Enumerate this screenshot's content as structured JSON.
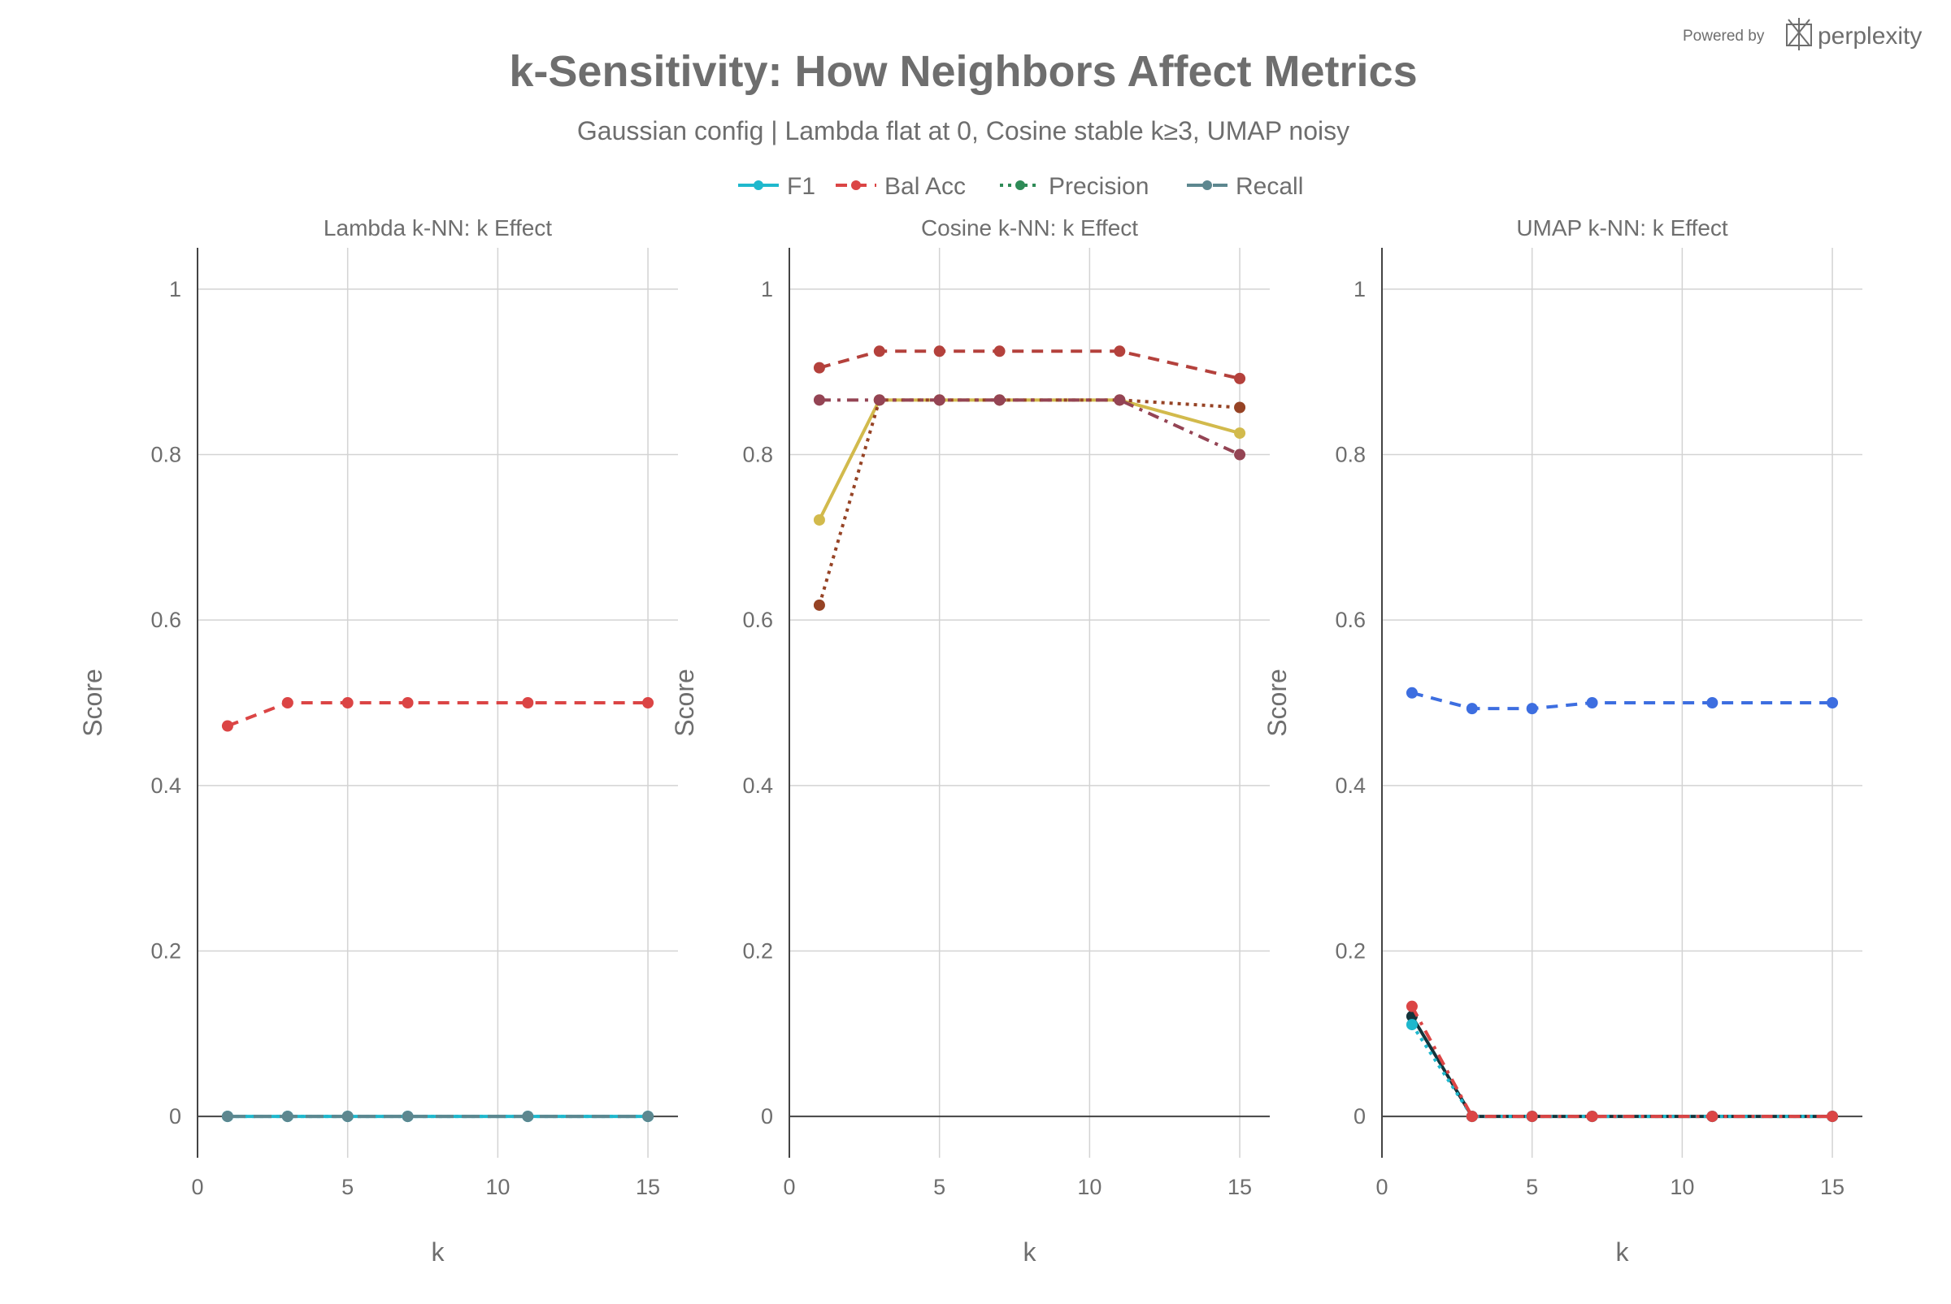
{
  "chart_data": {
    "type": "line",
    "title": "k-Sensitivity: How Neighbors Affect Metrics",
    "subtitle": "Gaussian config | Lambda flat at 0, Cosine stable k≥3, UMAP noisy",
    "watermark": "Powered by perplexity",
    "legend": {
      "placement": "top-center",
      "entries": [
        {
          "name": "F1",
          "color": "#1fb8cd",
          "dash": "solid"
        },
        {
          "name": "Bal Acc",
          "color": "#db4545",
          "dash": "dash"
        },
        {
          "name": "Precision",
          "color": "#2e8b57",
          "dash": "dot"
        },
        {
          "name": "Recall",
          "color": "#5d878f",
          "dash": "longdash"
        }
      ]
    },
    "x": [
      1,
      3,
      5,
      7,
      11,
      15
    ],
    "panels": [
      {
        "title": "Lambda k-NN: k Effect",
        "xlabel": "k",
        "ylabel": "Score",
        "xlim": [
          0,
          16
        ],
        "ylim": [
          -0.05,
          1.05
        ],
        "xticks": [
          0,
          5,
          10,
          15
        ],
        "yticks": [
          0,
          0.2,
          0.4,
          0.6,
          0.8,
          1
        ],
        "grid": true,
        "series": [
          {
            "name": "F1",
            "color": "#1fb8cd",
            "dash": "solid",
            "values": [
              0,
              0,
              0,
              0,
              0,
              0
            ]
          },
          {
            "name": "Bal Acc",
            "color": "#db4545",
            "dash": "dash",
            "values": [
              0.472,
              0.5,
              0.5,
              0.5,
              0.5,
              0.5
            ]
          },
          {
            "name": "Precision",
            "color": "#1fb8cd",
            "dash": "dot",
            "values": [
              0,
              0,
              0,
              0,
              0,
              0
            ]
          },
          {
            "name": "Recall",
            "color": "#5d878f",
            "dash": "longdash",
            "values": [
              0,
              0,
              0,
              0,
              0,
              0
            ]
          }
        ]
      },
      {
        "title": "Cosine k-NN: k Effect",
        "xlabel": "k",
        "ylabel": "Score",
        "xlim": [
          0,
          16
        ],
        "ylim": [
          -0.05,
          1.05
        ],
        "xticks": [
          0,
          5,
          10,
          15
        ],
        "yticks": [
          0,
          0.2,
          0.4,
          0.6,
          0.8,
          1
        ],
        "grid": true,
        "series": [
          {
            "name": "F1",
            "color": "#d2ba4c",
            "dash": "solid",
            "values": [
              0.721,
              0.866,
              0.866,
              0.866,
              0.866,
              0.826
            ]
          },
          {
            "name": "Bal Acc",
            "color": "#b4413c",
            "dash": "dash",
            "values": [
              0.905,
              0.925,
              0.925,
              0.925,
              0.925,
              0.892
            ]
          },
          {
            "name": "Precision",
            "color": "#964325",
            "dash": "dot",
            "values": [
              0.618,
              0.866,
              0.866,
              0.866,
              0.866,
              0.857
            ]
          },
          {
            "name": "Recall",
            "color": "#944454",
            "dash": "dashdot",
            "values": [
              0.866,
              0.866,
              0.866,
              0.866,
              0.866,
              0.8
            ]
          }
        ]
      },
      {
        "title": "UMAP k-NN: k Effect",
        "xlabel": "k",
        "ylabel": "Score",
        "xlim": [
          0,
          16
        ],
        "ylim": [
          -0.05,
          1.05
        ],
        "xticks": [
          0,
          5,
          10,
          15
        ],
        "yticks": [
          0,
          0.2,
          0.4,
          0.6,
          0.8,
          1
        ],
        "grid": true,
        "series": [
          {
            "name": "F1",
            "color": "#13343b",
            "dash": "solid",
            "values": [
              0.121,
              0,
              0,
              0,
              0,
              0
            ]
          },
          {
            "name": "Bal Acc",
            "color": "#3d6ee0",
            "dash": "dash",
            "values": [
              0.512,
              0.493,
              0.493,
              0.5,
              0.5,
              0.5
            ]
          },
          {
            "name": "Precision",
            "color": "#1fb8cd",
            "dash": "dot",
            "values": [
              0.111,
              0,
              0,
              0,
              0,
              0
            ]
          },
          {
            "name": "Recall",
            "color": "#db4545",
            "dash": "dashdot",
            "values": [
              0.133,
              0,
              0,
              0,
              0,
              0
            ]
          }
        ]
      }
    ]
  }
}
